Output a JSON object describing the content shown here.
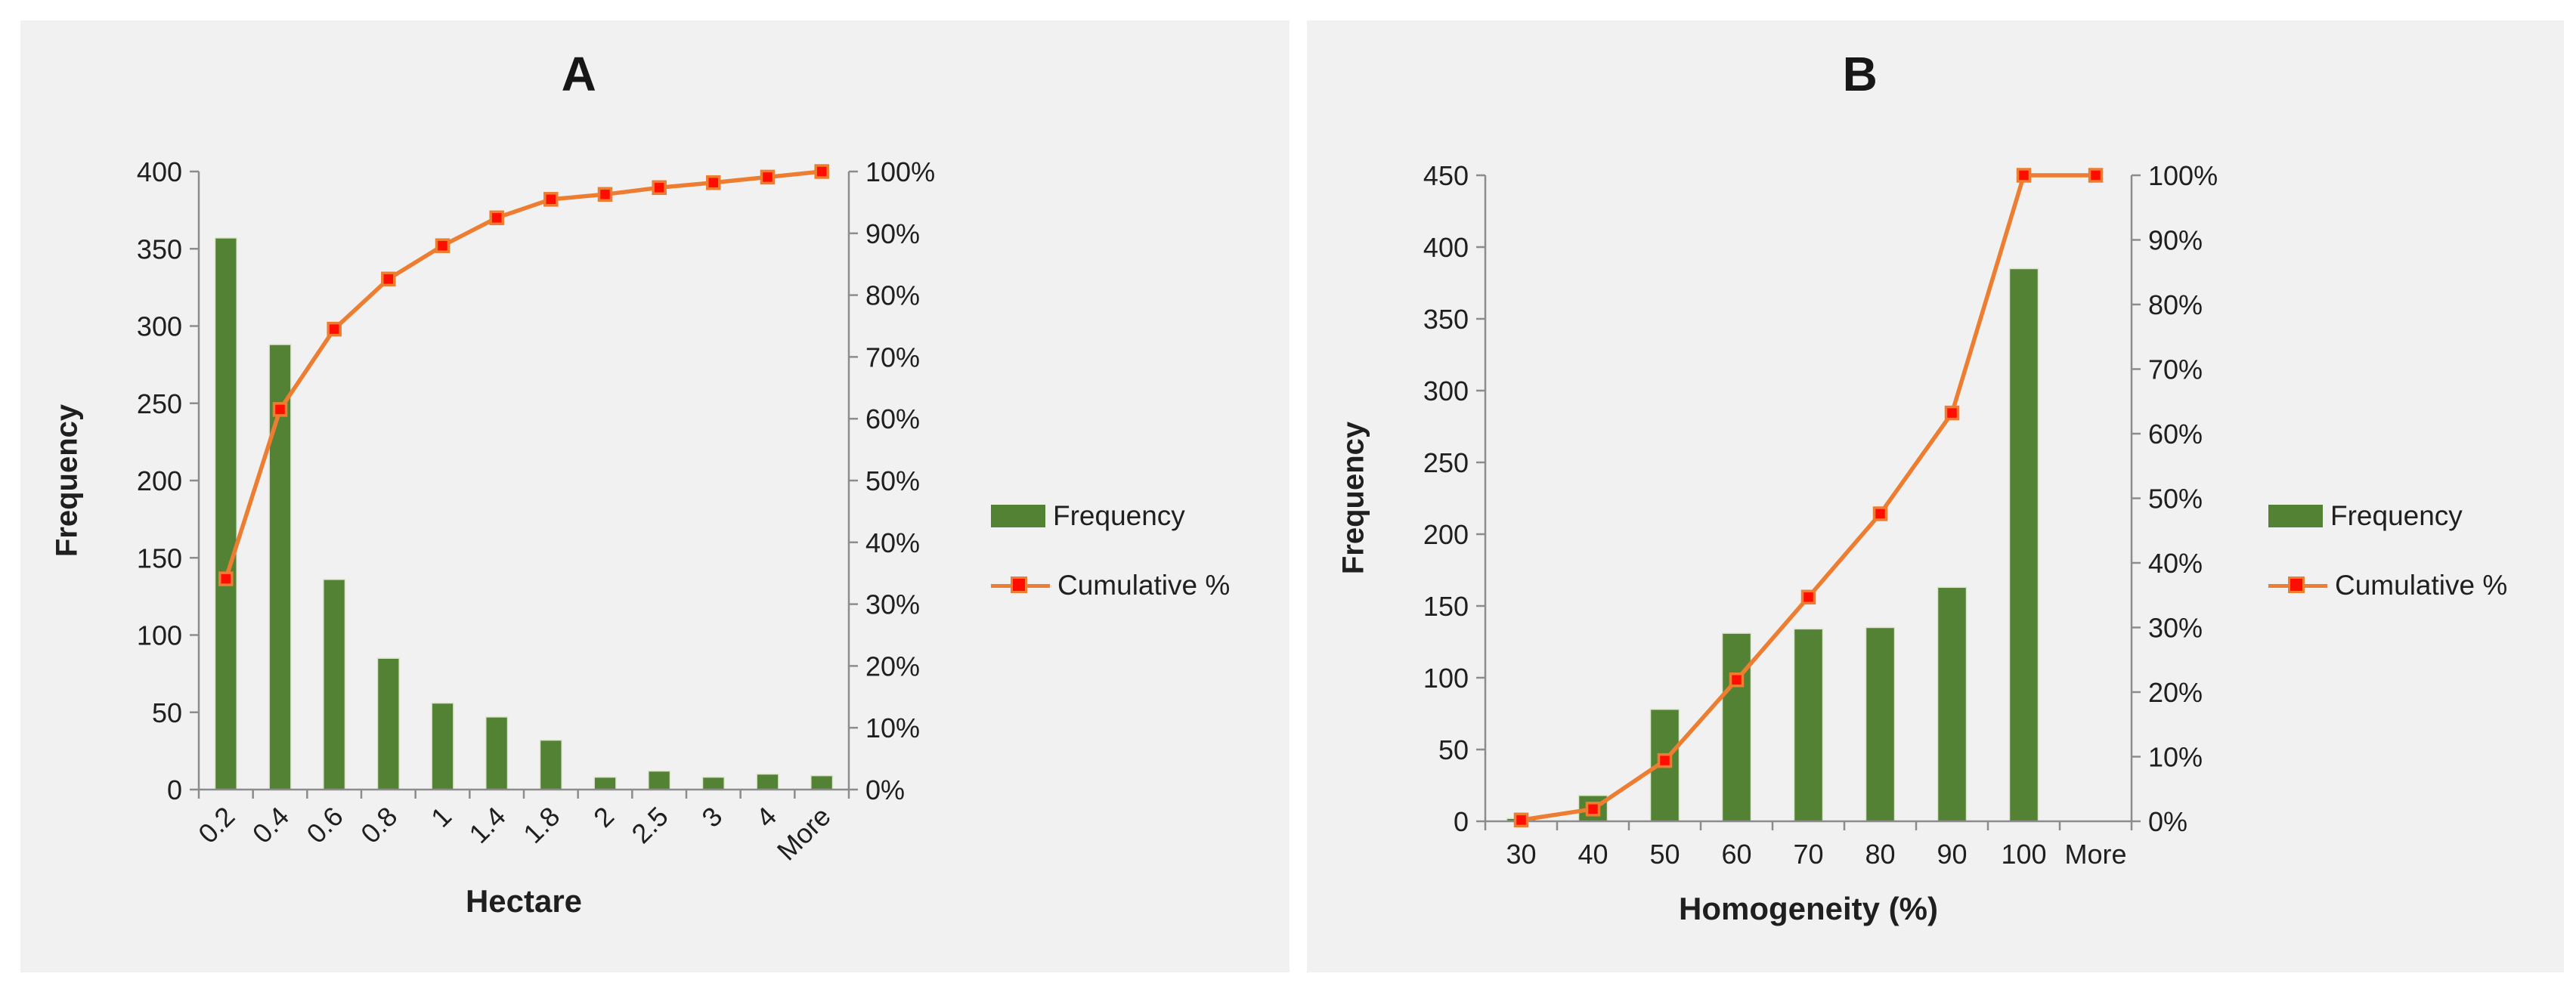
{
  "figure": {
    "background": "#FFFFFF",
    "panel_background": "#F1F1F1"
  },
  "colors": {
    "bar_green": "#538235",
    "bar_edge": "#DDE5CF",
    "line_orange": "#ED7D31",
    "marker_red": "#FF0D00",
    "axis_gray": "#8C8C8C",
    "text": "#1F1F1F"
  },
  "chart_data": [
    {
      "type": "bar",
      "subtype": "pareto-histogram-with-cumulative-line",
      "title": "A",
      "xlabel": "Hectare",
      "ylabel": "Frequency",
      "categories": [
        "0.2",
        "0.4",
        "0.6",
        "0.8",
        "1",
        "1.4",
        "1.8",
        "2",
        "2.5",
        "3",
        "4",
        "More"
      ],
      "series": [
        {
          "name": "Frequency",
          "type": "bar",
          "axis": "left",
          "values": [
            357,
            288,
            136,
            85,
            56,
            47,
            32,
            8,
            12,
            8,
            10,
            9
          ]
        },
        {
          "name": "Cumulative %",
          "type": "line",
          "axis": "right",
          "values_percent": [
            34.1,
            61.5,
            74.5,
            82.6,
            88.0,
            92.5,
            95.5,
            96.3,
            97.4,
            98.2,
            99.1,
            100
          ]
        }
      ],
      "left_axis": {
        "min": 0,
        "max": 400,
        "ticks": [
          "0",
          "50",
          "100",
          "150",
          "200",
          "250",
          "300",
          "350",
          "400"
        ]
      },
      "right_axis": {
        "min": "0%",
        "max": "100%",
        "ticks": [
          "0%",
          "10%",
          "20%",
          "30%",
          "40%",
          "50%",
          "60%",
          "70%",
          "80%",
          "90%",
          "100%"
        ]
      },
      "legend": {
        "position": "right",
        "entries": [
          "Frequency",
          "Cumulative %"
        ]
      },
      "grid": "off",
      "x_tick_label_rotation_deg": -45
    },
    {
      "type": "bar",
      "subtype": "pareto-histogram-with-cumulative-line",
      "title": "B",
      "xlabel": "Homogeneity (%)",
      "ylabel": "Frequency",
      "categories": [
        "30",
        "40",
        "50",
        "60",
        "70",
        "80",
        "90",
        "100",
        "More"
      ],
      "series": [
        {
          "name": "Frequency",
          "type": "bar",
          "axis": "left",
          "values": [
            2,
            18,
            78,
            131,
            134,
            135,
            163,
            385,
            0
          ]
        },
        {
          "name": "Cumulative %",
          "type": "line",
          "axis": "right",
          "values_percent": [
            0.2,
            1.9,
            9.4,
            21.9,
            34.7,
            47.6,
            63.2,
            100,
            100
          ]
        }
      ],
      "left_axis": {
        "min": 0,
        "max": 450,
        "ticks": [
          "0",
          "50",
          "100",
          "150",
          "200",
          "250",
          "300",
          "350",
          "400",
          "450"
        ]
      },
      "right_axis": {
        "min": "0%",
        "max": "100%",
        "ticks": [
          "0%",
          "10%",
          "20%",
          "30%",
          "40%",
          "50%",
          "60%",
          "70%",
          "80%",
          "90%",
          "100%"
        ]
      },
      "legend": {
        "position": "right",
        "entries": [
          "Frequency",
          "Cumulative %"
        ]
      },
      "grid": "off",
      "x_tick_label_rotation_deg": 0
    }
  ]
}
